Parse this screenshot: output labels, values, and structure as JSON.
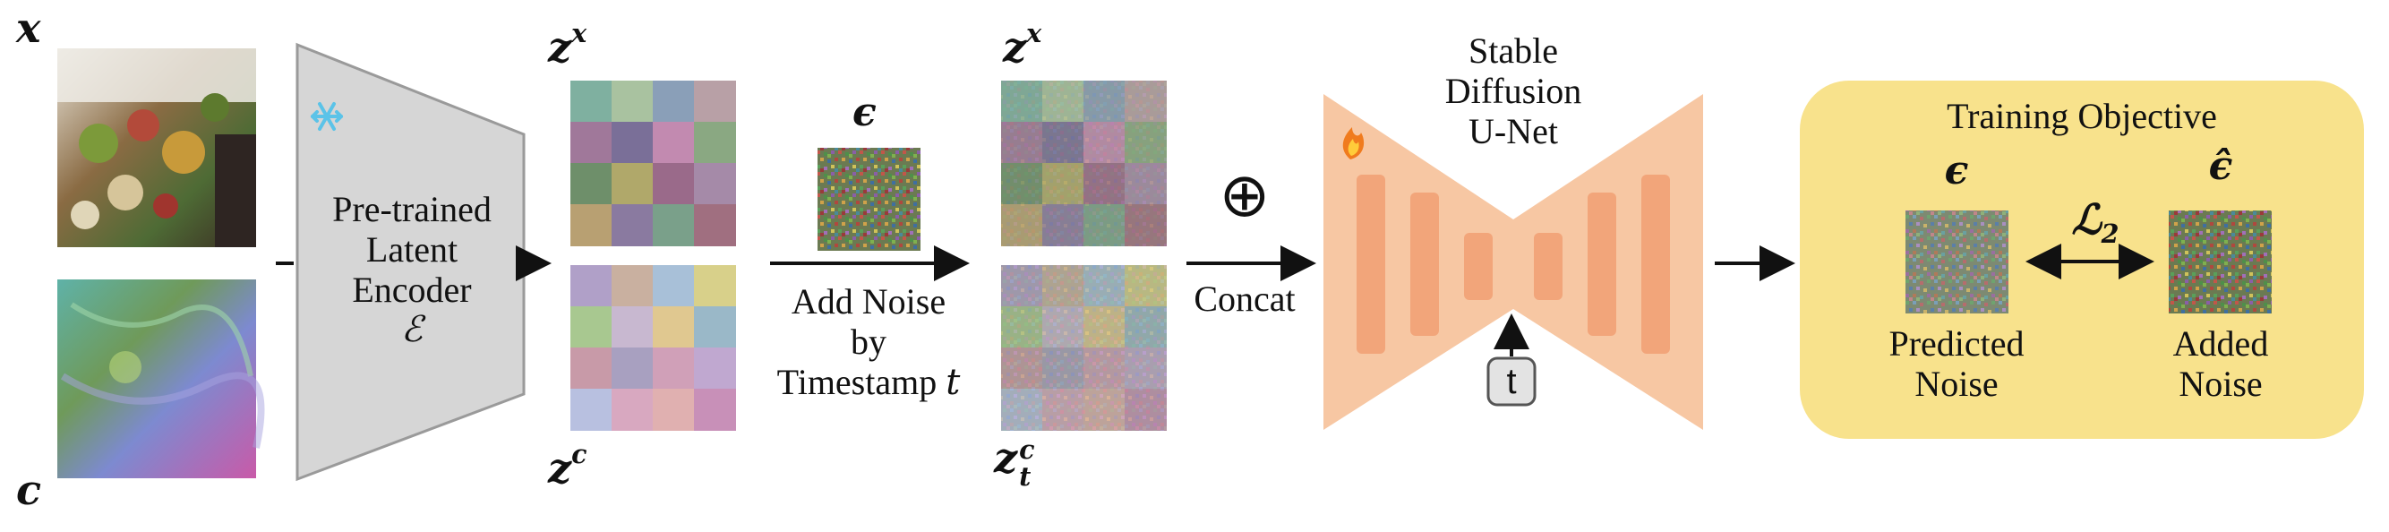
{
  "colors": {
    "encoder_fill": "#d6d6d6",
    "encoder_stroke": "#9a9a9a",
    "unet_fill": "#f7c7a3",
    "unet_block": "#f2a57a",
    "objective_bg": "#f8e28c",
    "snowflake": "#5bc3e8",
    "flame": "#f07b1e",
    "arrow": "#111111"
  },
  "inputs": {
    "x_label": "x",
    "c_label": "c"
  },
  "encoder": {
    "line1": "Pre-trained",
    "line2": "Latent",
    "line3": "Encoder",
    "symbol": "ℰ",
    "frozen_icon": "snowflake-icon"
  },
  "latents": {
    "zx_base": "z",
    "zx_sup": "x",
    "zc_base": "z",
    "zc_sup": "c",
    "noisy_zx_base": "z",
    "noisy_zx_sup": "x",
    "noisy_zc_base": "z",
    "noisy_zc_sup": "c",
    "noisy_zc_sub": "t"
  },
  "noise": {
    "epsilon": "ϵ",
    "line1": "Add Noise",
    "line2": "by",
    "line3": "Timestamp",
    "t_symbol": "t"
  },
  "concat": {
    "symbol": "⊕",
    "label": "Concat"
  },
  "unet": {
    "line1": "Stable",
    "line2": "Diffusion",
    "line3": "U-Net",
    "timestep": "t",
    "trainable_icon": "flame-icon"
  },
  "objective": {
    "title": "Training Objective",
    "eps": "ϵ",
    "eps_hat": "ϵ̂",
    "loss_base": "ℒ",
    "loss_sub": "2",
    "predicted_line1": "Predicted",
    "predicted_line2": "Noise",
    "added_line1": "Added",
    "added_line2": "Noise"
  }
}
